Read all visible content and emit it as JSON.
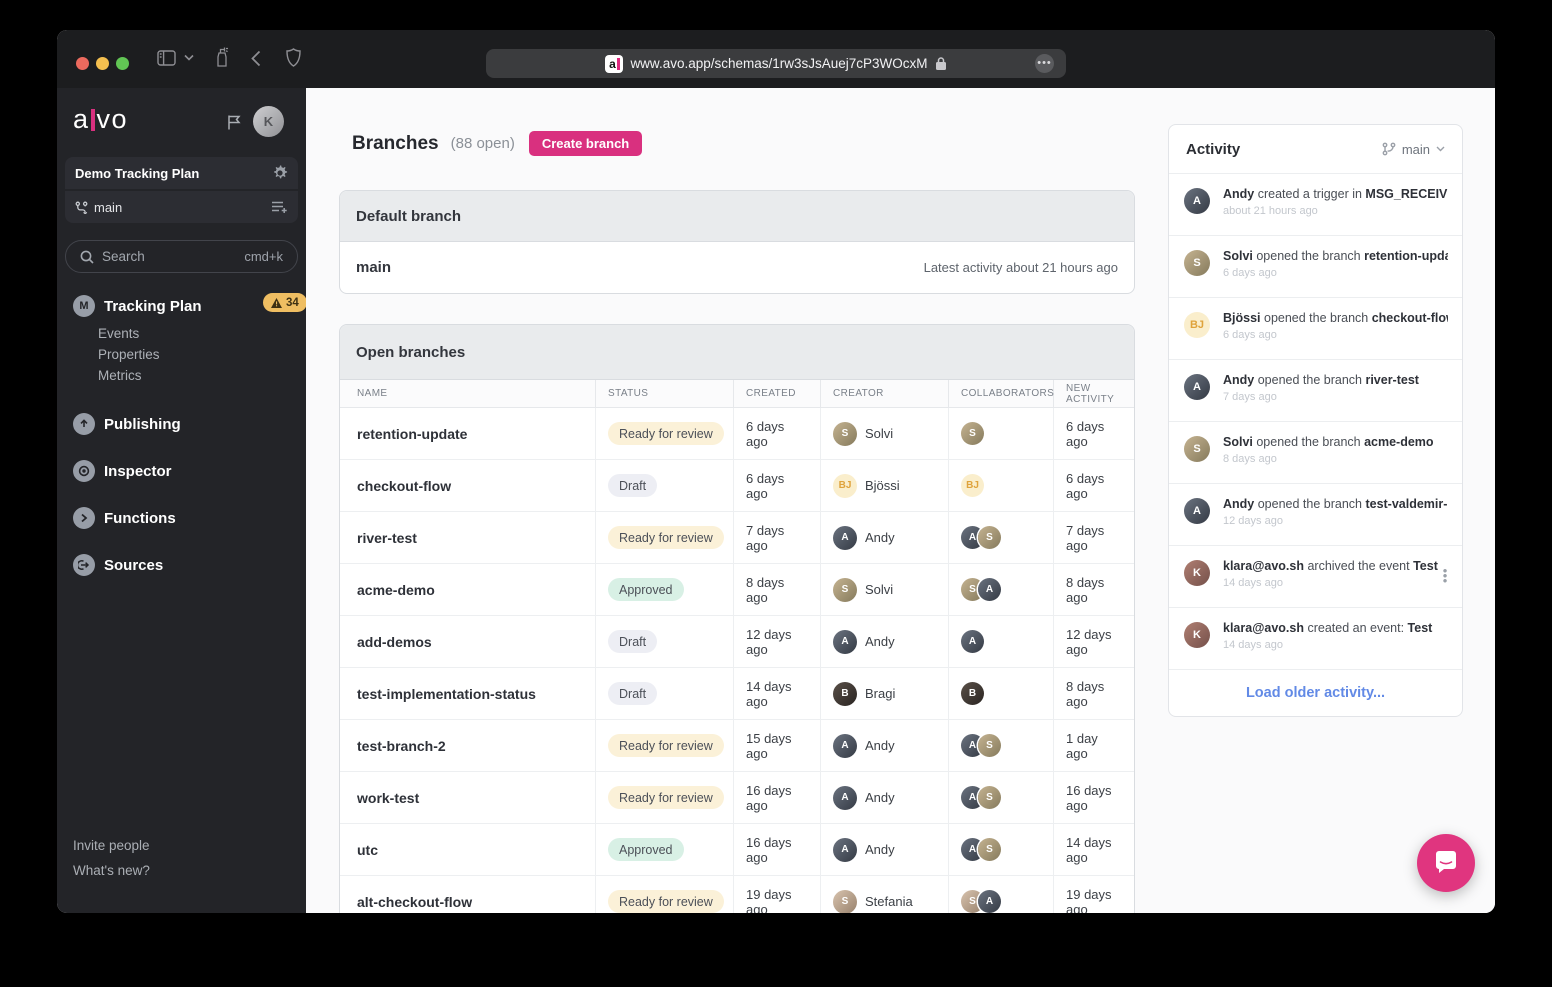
{
  "browser": {
    "url": "www.avo.app/schemas/1rw3sJsAuej7cP3WOcxM",
    "favicon_letter": "a"
  },
  "sidebar": {
    "logo_a": "a",
    "logo_vo": "vo",
    "workspace": "Demo Tracking Plan",
    "branch": "main",
    "search": {
      "placeholder": "Search",
      "shortcut": "cmd+k"
    },
    "tracking_plan": {
      "label": "Tracking Plan",
      "badge": "34",
      "children": [
        "Events",
        "Properties",
        "Metrics"
      ]
    },
    "nav": [
      {
        "label": "Publishing",
        "icon": "publishing-icon"
      },
      {
        "label": "Inspector",
        "icon": "inspector-icon"
      },
      {
        "label": "Functions",
        "icon": "functions-icon"
      },
      {
        "label": "Sources",
        "icon": "sources-icon"
      }
    ],
    "footer": [
      "Invite people",
      "What's new?"
    ]
  },
  "main": {
    "title": "Branches",
    "subtitle": "(88 open)",
    "create_button": "Create branch",
    "default_branch": {
      "header": "Default branch",
      "name": "main",
      "latest": "Latest activity about 21 hours ago"
    },
    "open_branches": {
      "header": "Open branches",
      "columns": [
        "NAME",
        "STATUS",
        "CREATED",
        "CREATOR",
        "COLLABORATORS",
        "NEW ACTIVITY"
      ],
      "rows": [
        {
          "name": "retention-update",
          "status": {
            "label": "Ready for review",
            "type": "ready"
          },
          "created": "6 days ago",
          "creator": {
            "avatar": "solvi",
            "name": "Solvi"
          },
          "collaborators": [
            "solvi"
          ],
          "new_activity": "6 days ago"
        },
        {
          "name": "checkout-flow",
          "status": {
            "label": "Draft",
            "type": "draft"
          },
          "created": "6 days ago",
          "creator": {
            "avatar": "bjossi",
            "name": "Bjössi"
          },
          "collaborators": [
            "bjossi"
          ],
          "new_activity": "6 days ago"
        },
        {
          "name": "river-test",
          "status": {
            "label": "Ready for review",
            "type": "ready"
          },
          "created": "7 days ago",
          "creator": {
            "avatar": "andy",
            "name": "Andy"
          },
          "collaborators": [
            "andy",
            "solvi"
          ],
          "new_activity": "7 days ago"
        },
        {
          "name": "acme-demo",
          "status": {
            "label": "Approved",
            "type": "approved"
          },
          "created": "8 days ago",
          "creator": {
            "avatar": "solvi",
            "name": "Solvi"
          },
          "collaborators": [
            "solvi",
            "andy"
          ],
          "new_activity": "8 days ago"
        },
        {
          "name": "add-demos",
          "status": {
            "label": "Draft",
            "type": "draft"
          },
          "created": "12 days ago",
          "creator": {
            "avatar": "andy",
            "name": "Andy"
          },
          "collaborators": [
            "andy"
          ],
          "new_activity": "12 days ago"
        },
        {
          "name": "test-implementation-status",
          "status": {
            "label": "Draft",
            "type": "draft"
          },
          "created": "14 days ago",
          "creator": {
            "avatar": "bragi",
            "name": "Bragi"
          },
          "collaborators": [
            "bragi"
          ],
          "new_activity": "8 days ago"
        },
        {
          "name": "test-branch-2",
          "status": {
            "label": "Ready for review",
            "type": "ready"
          },
          "created": "15 days ago",
          "creator": {
            "avatar": "andy",
            "name": "Andy"
          },
          "collaborators": [
            "andy",
            "solvi"
          ],
          "new_activity": "1 day ago"
        },
        {
          "name": "work-test",
          "status": {
            "label": "Ready for review",
            "type": "ready"
          },
          "created": "16 days ago",
          "creator": {
            "avatar": "andy",
            "name": "Andy"
          },
          "collaborators": [
            "andy",
            "solvi"
          ],
          "new_activity": "16 days ago"
        },
        {
          "name": "utc",
          "status": {
            "label": "Approved",
            "type": "approved"
          },
          "created": "16 days ago",
          "creator": {
            "avatar": "andy",
            "name": "Andy"
          },
          "collaborators": [
            "andy",
            "solvi"
          ],
          "new_activity": "14 days ago"
        },
        {
          "name": "alt-checkout-flow",
          "status": {
            "label": "Ready for review",
            "type": "ready"
          },
          "created": "19 days ago",
          "creator": {
            "avatar": "stefania",
            "name": "Stefania"
          },
          "collaborators": [
            "stefania",
            "andy"
          ],
          "new_activity": "19 days ago"
        }
      ]
    }
  },
  "activity": {
    "title": "Activity",
    "branch_filter": "main",
    "items": [
      {
        "avatar": "andy",
        "actor": "Andy",
        "middle": "created a trigger in",
        "object": "MSG_RECEIVED",
        "time": "about 21 hours ago",
        "menu": false
      },
      {
        "avatar": "solvi",
        "actor": "Solvi",
        "middle": "opened the branch",
        "object": "retention-update",
        "time": "6 days ago",
        "menu": false
      },
      {
        "avatar": "bjossi",
        "actor": "Bjössi",
        "middle": "opened the branch",
        "object": "checkout-flow",
        "time": "6 days ago",
        "menu": false
      },
      {
        "avatar": "andy",
        "actor": "Andy",
        "middle": "opened the branch",
        "object": "river-test",
        "time": "7 days ago",
        "menu": false
      },
      {
        "avatar": "solvi",
        "actor": "Solvi",
        "middle": "opened the branch",
        "object": "acme-demo",
        "time": "8 days ago",
        "menu": false
      },
      {
        "avatar": "andy",
        "actor": "Andy",
        "middle": "opened the branch",
        "object": "test-valdemir-",
        "time": "12 days ago",
        "menu": false
      },
      {
        "avatar": "klara",
        "actor": "klara@avo.sh",
        "middle": "archived the event",
        "object": "Test",
        "time": "14 days ago",
        "menu": true
      },
      {
        "avatar": "klara",
        "actor": "klara@avo.sh",
        "middle": "created an event:",
        "object": "Test",
        "time": "14 days ago",
        "menu": false
      }
    ],
    "load_more": "Load older activity..."
  },
  "people": {
    "andy": {
      "initials": "A",
      "bg": "linear-gradient(135deg,#6b7380,#343a44)",
      "fg": "#ffffff"
    },
    "solvi": {
      "initials": "S",
      "bg": "linear-gradient(135deg,#c5b391,#857a5c)",
      "fg": "#ffffff"
    },
    "bjossi": {
      "initials": "BJ",
      "bg": "#FAEECC",
      "fg": "#DFA33C"
    },
    "bragi": {
      "initials": "B",
      "bg": "linear-gradient(135deg,#5a5048,#2a2522)",
      "fg": "#ffffff"
    },
    "stefania": {
      "initials": "S",
      "bg": "linear-gradient(135deg,#d8c3ae,#97816c)",
      "fg": "#ffffff"
    },
    "klara": {
      "initials": "K",
      "bg": "linear-gradient(135deg,#b07f72,#74504a)",
      "fg": "#ffffff"
    }
  },
  "colors": {
    "brand_pink": "#D9307F",
    "badge_yellow": "#EFBE62",
    "pill_ready": "#FBF1D8",
    "pill_draft": "#EDEEF4",
    "pill_approved": "#D8F0E5",
    "link_blue": "#628AE6"
  }
}
